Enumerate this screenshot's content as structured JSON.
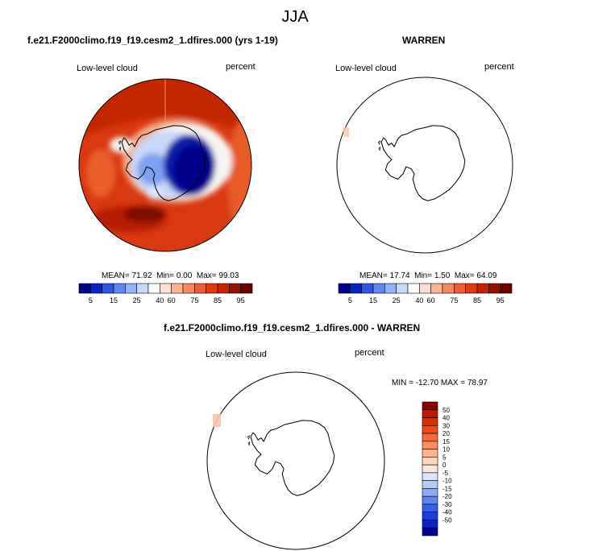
{
  "title": "JJA",
  "panels": [
    {
      "id": "case",
      "title": "f.e21.F2000climo.f19_f19.cesm2_1.dfires.000 (yrs 1-19)",
      "variable": "Low-level cloud",
      "units": "percent",
      "stats": {
        "mean_label": "MEAN=",
        "mean": "71.92",
        "min_label": "Min=",
        "min": "0.00",
        "max_label": "Max=",
        "max": "99.03"
      }
    },
    {
      "id": "obs",
      "title": "WARREN",
      "variable": "Low-level cloud",
      "units": "percent",
      "stats": {
        "mean_label": "MEAN=",
        "mean": "17.74",
        "min_label": "Min=",
        "min": "1.50",
        "max_label": "Max=",
        "max": "64.09"
      }
    },
    {
      "id": "diff",
      "title": "f.e21.F2000climo.f19_f19.cesm2_1.dfires.000 - WARREN",
      "variable": "Low-level cloud",
      "units": "percent",
      "stats": {
        "text": "MIN = -12.70 MAX =  78.97"
      }
    }
  ],
  "chart_data": {
    "type": "heatmap",
    "projection": "south-polar-stereographic",
    "horizontal_colorbar": {
      "colors": [
        "#00008b",
        "#0a22c8",
        "#2f55e8",
        "#5f86f2",
        "#94b2f7",
        "#c8d9fb",
        "#ffffff",
        "#fde0d2",
        "#fbb494",
        "#f58a60",
        "#ef5e30",
        "#e33a12",
        "#c82200",
        "#961000",
        "#6b0000"
      ],
      "tick_labels": [
        "5",
        "15",
        "25",
        "40",
        "60",
        "75",
        "85",
        "95"
      ]
    },
    "vertical_colorbar": {
      "colors": [
        "#8b0000",
        "#c01800",
        "#dc2e00",
        "#ee4a1a",
        "#f46a3c",
        "#f7905f",
        "#fab48f",
        "#fcd6bc",
        "#fde9dc",
        "#dae6fb",
        "#b4cbf7",
        "#8cabf2",
        "#5f86ec",
        "#3b62e6",
        "#1d3fd8",
        "#0a22c0",
        "#00008b"
      ],
      "tick_labels": [
        "50",
        "40",
        "30",
        "20",
        "15",
        "10",
        "5",
        "0",
        "-5",
        "-10",
        "-15",
        "-20",
        "-30",
        "-40",
        "-50"
      ]
    }
  }
}
